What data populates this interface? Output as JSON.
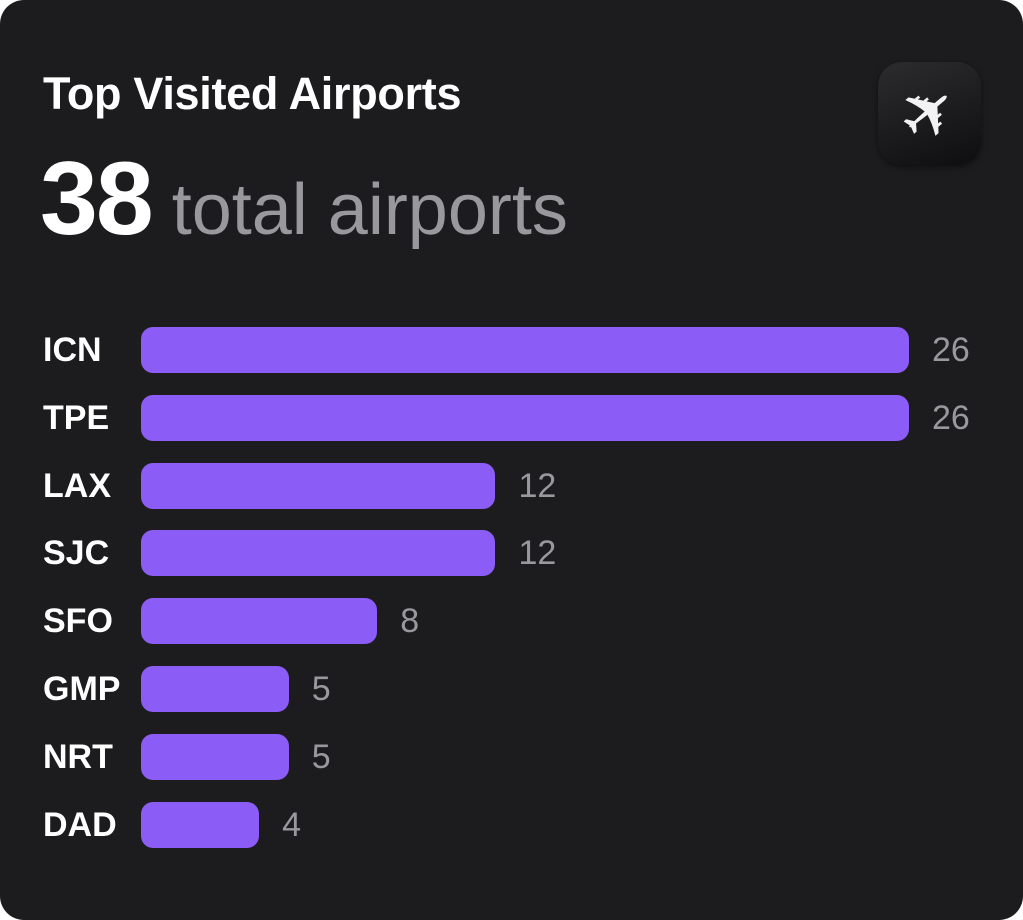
{
  "chart_data": {
    "type": "bar",
    "orientation": "horizontal",
    "title": "Top Visited Airports",
    "summary": {
      "value": "38",
      "label": "total airports"
    },
    "categories": [
      "ICN",
      "TPE",
      "LAX",
      "SJC",
      "SFO",
      "GMP",
      "NRT",
      "DAD"
    ],
    "values": [
      26,
      26,
      12,
      12,
      8,
      5,
      5,
      4
    ],
    "xlim": [
      0,
      26
    ],
    "grid": false,
    "bar_color": "#8b5cf6",
    "background": "#1c1c1e"
  },
  "icon": "airplane-icon"
}
